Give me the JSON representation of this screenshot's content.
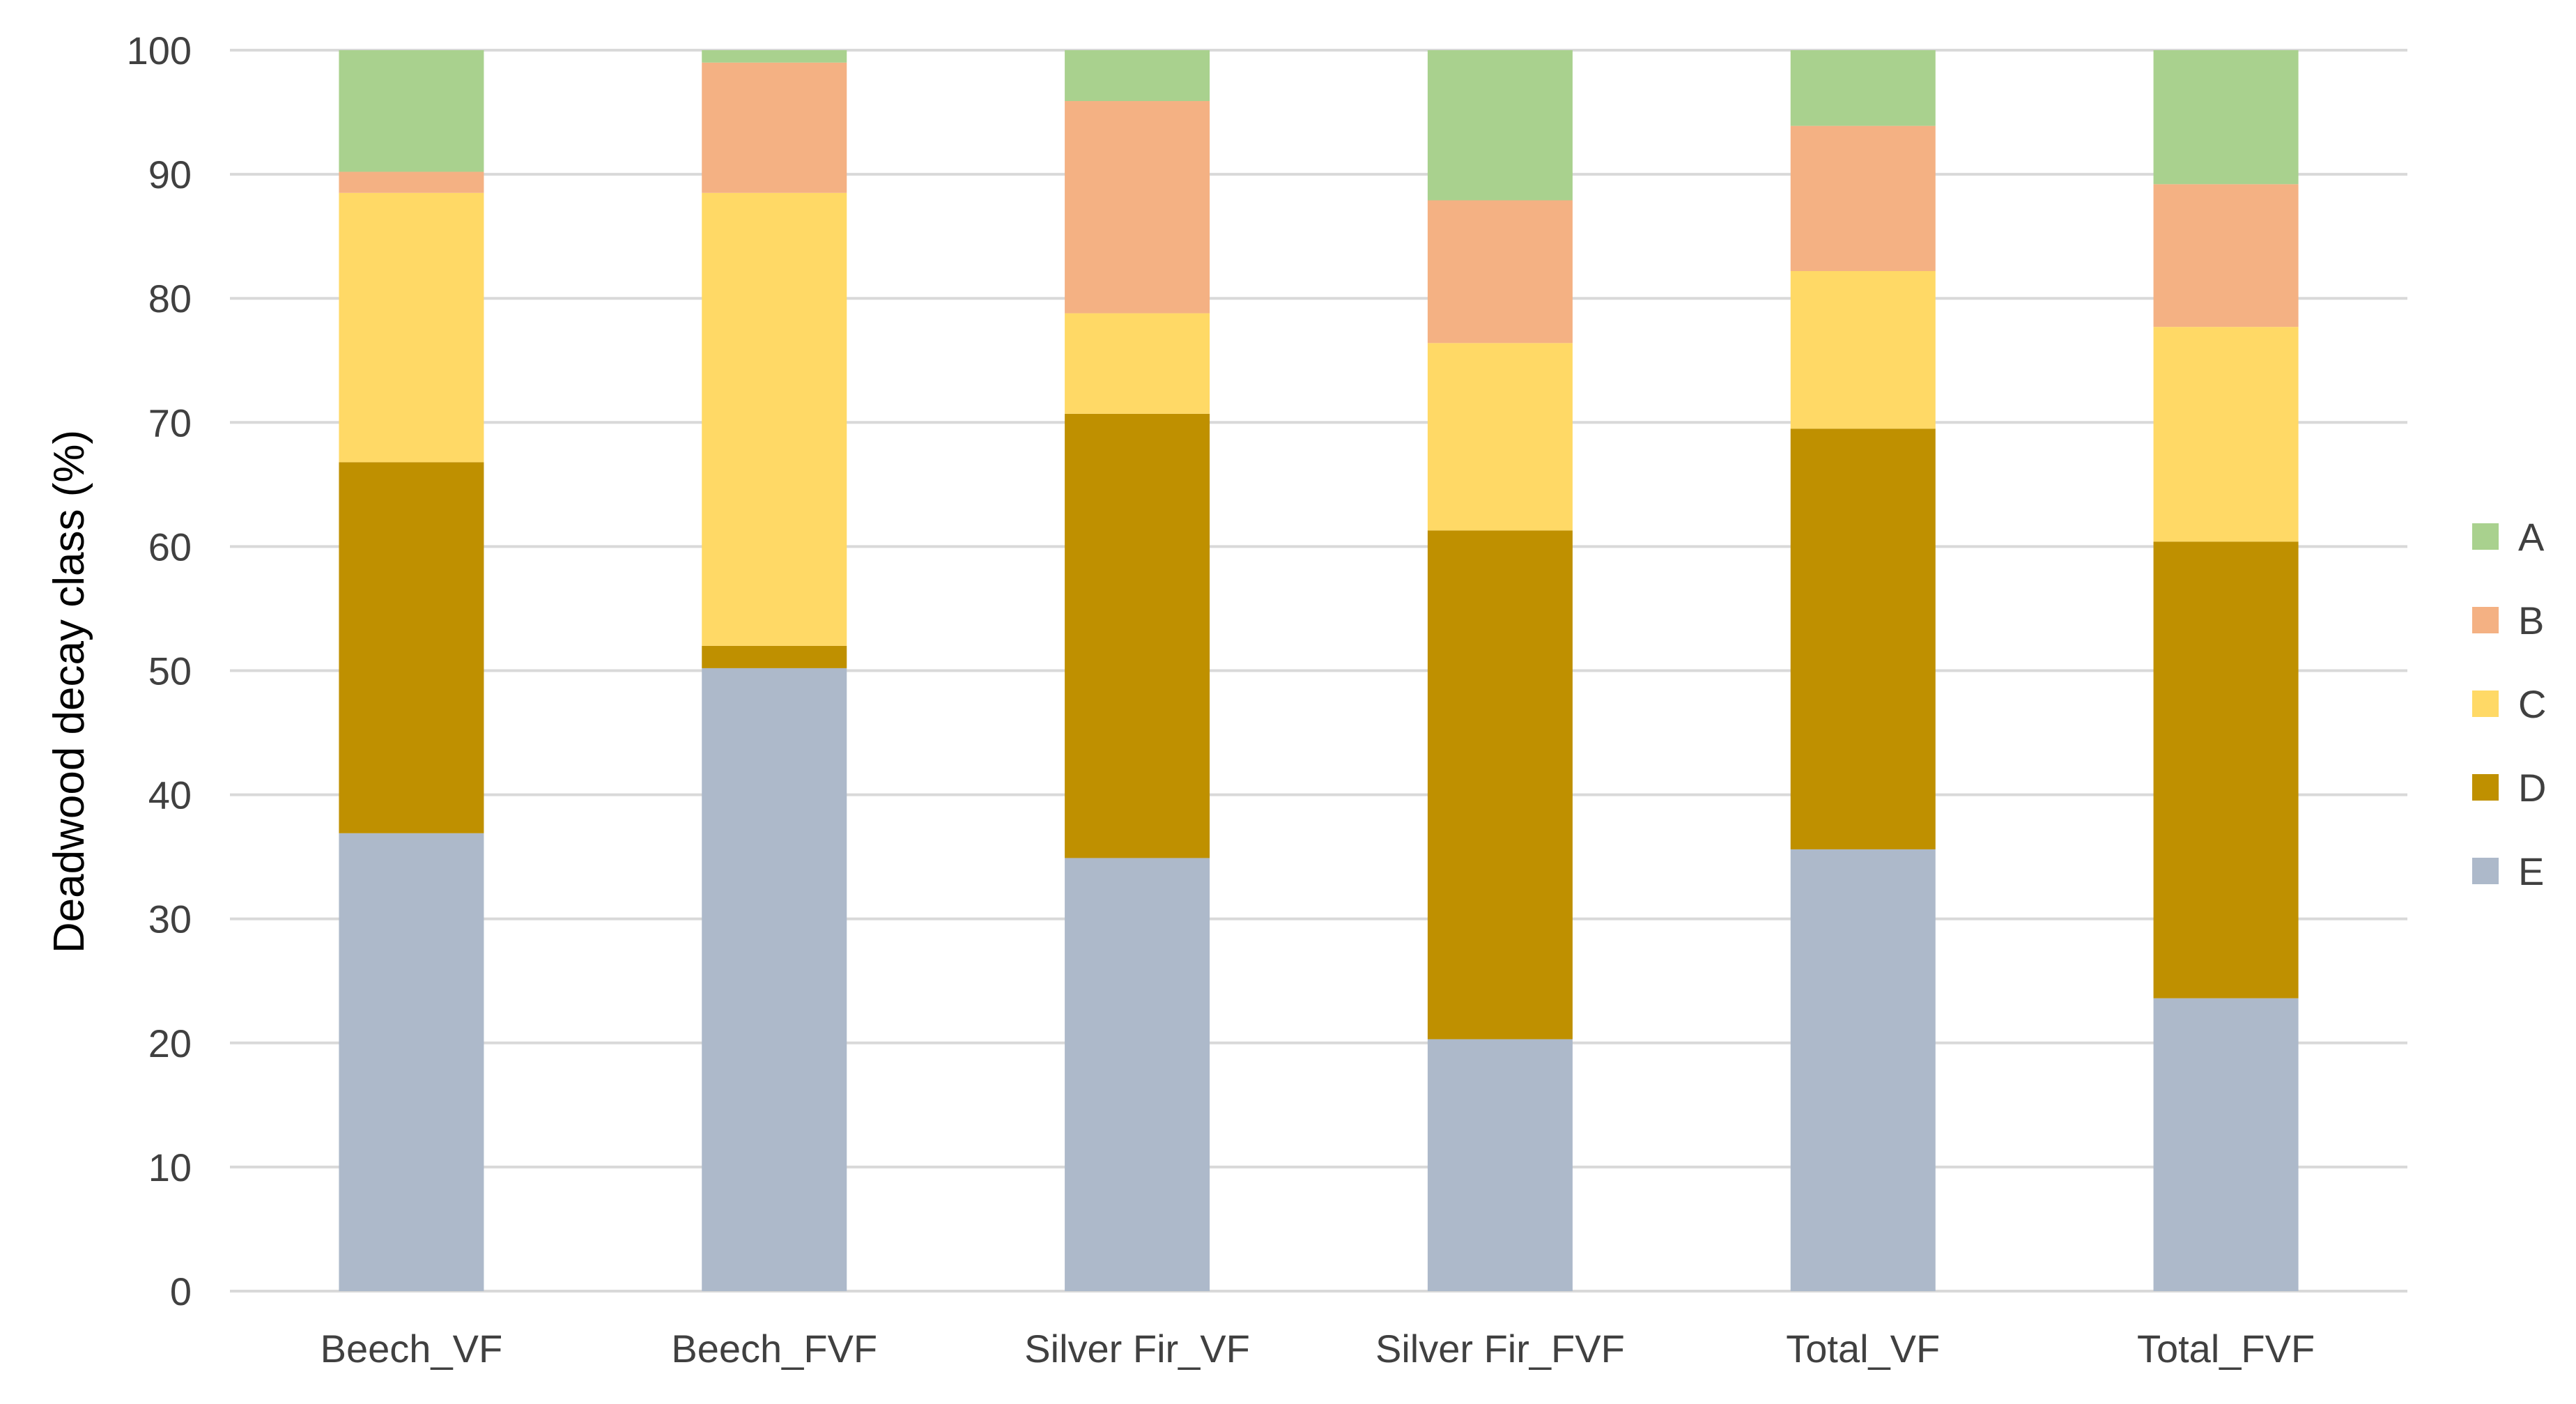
{
  "chart_data": {
    "type": "bar",
    "stacked": true,
    "title": "",
    "xlabel": "",
    "ylabel": "Deadwood decay class (%)",
    "ylim": [
      0,
      100
    ],
    "yticks": [
      "0",
      "10",
      "20",
      "30",
      "40",
      "50",
      "60",
      "70",
      "80",
      "90",
      "100"
    ],
    "grid": true,
    "legend_position": "right",
    "categories": [
      "Beech_VF",
      "Beech_FVF",
      "Silver Fir_VF",
      "Silver Fir_FVF",
      "Total_VF",
      "Total_FVF"
    ],
    "series": [
      {
        "name": "E",
        "color": "#adb9ca",
        "values": [
          36.9,
          50.2,
          34.9,
          20.3,
          35.6,
          23.6
        ]
      },
      {
        "name": "D",
        "color": "#bf9000",
        "values": [
          29.9,
          1.8,
          35.8,
          41.0,
          33.9,
          36.8
        ]
      },
      {
        "name": "C",
        "color": "#ffd966",
        "values": [
          21.7,
          36.5,
          8.1,
          15.1,
          12.7,
          17.3
        ]
      },
      {
        "name": "B",
        "color": "#f4b183",
        "values": [
          1.7,
          10.5,
          17.1,
          11.5,
          11.7,
          11.5
        ]
      },
      {
        "name": "A",
        "color": "#a9d18e",
        "values": [
          9.8,
          1.0,
          4.1,
          12.1,
          6.1,
          10.8
        ]
      }
    ],
    "legend_order": [
      "A",
      "B",
      "C",
      "D",
      "E"
    ]
  }
}
